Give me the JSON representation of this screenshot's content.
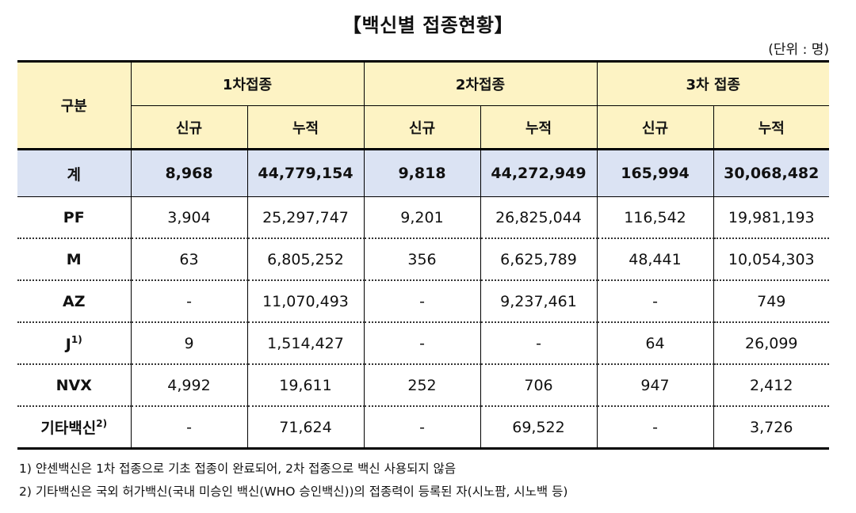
{
  "title": "【백신별 접종현황】",
  "unit": "(단위 : 명)",
  "header": {
    "group_label": "구분",
    "dose1": "1차접종",
    "dose2": "2차접종",
    "dose3": "3차 접종",
    "new": "신규",
    "cumulative": "누적"
  },
  "total": {
    "label": "계",
    "values": [
      "8,968",
      "44,779,154",
      "9,818",
      "44,272,949",
      "165,994",
      "30,068,482"
    ]
  },
  "rows": [
    {
      "label": "PF",
      "sup": "",
      "values": [
        "3,904",
        "25,297,747",
        "9,201",
        "26,825,044",
        "116,542",
        "19,981,193"
      ]
    },
    {
      "label": "M",
      "sup": "",
      "values": [
        "63",
        "6,805,252",
        "356",
        "6,625,789",
        "48,441",
        "10,054,303"
      ]
    },
    {
      "label": "AZ",
      "sup": "",
      "values": [
        "-",
        "11,070,493",
        "-",
        "9,237,461",
        "-",
        "749"
      ]
    },
    {
      "label": "J",
      "sup": "1)",
      "values": [
        "9",
        "1,514,427",
        "-",
        "-",
        "64",
        "26,099"
      ]
    },
    {
      "label": "NVX",
      "sup": "",
      "values": [
        "4,992",
        "19,611",
        "252",
        "706",
        "947",
        "2,412"
      ]
    },
    {
      "label": "기타백신",
      "sup": "2)",
      "values": [
        "-",
        "71,624",
        "-",
        "69,522",
        "-",
        "3,726"
      ]
    }
  ],
  "notes": [
    "1) 얀센백신은 1차 접종으로 기초 접종이 완료되어, 2차 접종으로 백신 사용되지 않음",
    "2) 기타백신은 국외 허가백신(국내 미승인 백신(WHO 승인백신))의 접종력이 등록된 자(시노팜, 시노백 등)"
  ]
}
